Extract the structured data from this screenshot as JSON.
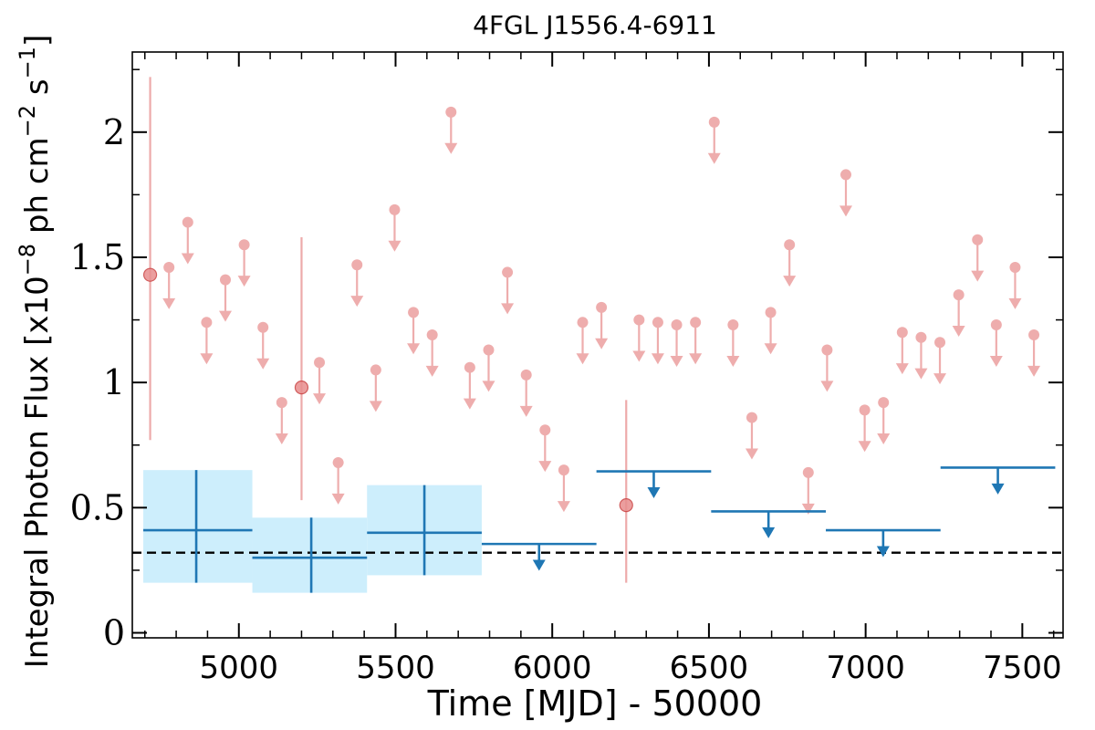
{
  "chart_data": {
    "type": "scatter",
    "title": "4FGL J1556.4-6911",
    "xlabel": "Time [MJD] - 50000",
    "ylabel": "Integral Photon Flux [x10",
    "ylabel_exp1": "−8",
    "ylabel_mid": " ph cm",
    "ylabel_exp2": "−2",
    "ylabel_mid2": " s",
    "ylabel_exp3": "−1",
    "ylabel_end": "]",
    "xlim": [
      4660,
      7630
    ],
    "ylim": [
      -0.02,
      2.32
    ],
    "xticks": [
      5000,
      5500,
      6000,
      6500,
      7000,
      7500
    ],
    "yticks": [
      0,
      0.5,
      1,
      1.5,
      2
    ],
    "ytick_labels": [
      "0",
      "0.5",
      "1",
      "1.5",
      "2"
    ],
    "reference_line": {
      "y": 0.32,
      "style": "dashed",
      "color": "#000000"
    },
    "colors": {
      "monthly": "#e88e8e",
      "yearly": "#1f77b4",
      "yearly_band": "#cdeefc"
    },
    "monthly_detections": [
      {
        "x": 4717,
        "y": 1.43,
        "ylo": 0.77,
        "yhi": 2.22
      },
      {
        "x": 5200,
        "y": 0.98,
        "ylo": 0.53,
        "yhi": 1.58
      },
      {
        "x": 6236,
        "y": 0.51,
        "ylo": 0.2,
        "yhi": 0.93
      }
    ],
    "monthly_upper_limits": [
      {
        "x": 4777,
        "y": 1.46
      },
      {
        "x": 4837,
        "y": 1.64
      },
      {
        "x": 4897,
        "y": 1.24
      },
      {
        "x": 4957,
        "y": 1.41
      },
      {
        "x": 5017,
        "y": 1.55
      },
      {
        "x": 5077,
        "y": 1.22
      },
      {
        "x": 5137,
        "y": 0.92
      },
      {
        "x": 5257,
        "y": 1.08
      },
      {
        "x": 5317,
        "y": 0.68
      },
      {
        "x": 5377,
        "y": 1.47
      },
      {
        "x": 5437,
        "y": 1.05
      },
      {
        "x": 5497,
        "y": 1.69
      },
      {
        "x": 5557,
        "y": 1.28
      },
      {
        "x": 5617,
        "y": 1.19
      },
      {
        "x": 5677,
        "y": 2.08
      },
      {
        "x": 5737,
        "y": 1.06
      },
      {
        "x": 5797,
        "y": 1.13
      },
      {
        "x": 5857,
        "y": 1.44
      },
      {
        "x": 5917,
        "y": 1.03
      },
      {
        "x": 5977,
        "y": 0.81
      },
      {
        "x": 6037,
        "y": 0.65
      },
      {
        "x": 6097,
        "y": 1.24
      },
      {
        "x": 6157,
        "y": 1.3
      },
      {
        "x": 6277,
        "y": 1.25
      },
      {
        "x": 6337,
        "y": 1.24
      },
      {
        "x": 6397,
        "y": 1.23
      },
      {
        "x": 6457,
        "y": 1.24
      },
      {
        "x": 6517,
        "y": 2.04
      },
      {
        "x": 6577,
        "y": 1.23
      },
      {
        "x": 6637,
        "y": 0.86
      },
      {
        "x": 6697,
        "y": 1.28
      },
      {
        "x": 6757,
        "y": 1.55
      },
      {
        "x": 6817,
        "y": 0.64
      },
      {
        "x": 6877,
        "y": 1.13
      },
      {
        "x": 6937,
        "y": 1.83
      },
      {
        "x": 6997,
        "y": 0.89
      },
      {
        "x": 7057,
        "y": 0.92
      },
      {
        "x": 7117,
        "y": 1.2
      },
      {
        "x": 7177,
        "y": 1.18
      },
      {
        "x": 7237,
        "y": 1.16
      },
      {
        "x": 7297,
        "y": 1.35
      },
      {
        "x": 7357,
        "y": 1.57
      },
      {
        "x": 7417,
        "y": 1.23
      },
      {
        "x": 7477,
        "y": 1.46
      },
      {
        "x": 7537,
        "y": 1.19
      }
    ],
    "yearly_detections": [
      {
        "x": 4864,
        "xlo": 4695,
        "xhi": 5043,
        "y": 0.41,
        "ylo": 0.2,
        "yhi": 0.65
      },
      {
        "x": 5231,
        "xlo": 5043,
        "xhi": 5409,
        "y": 0.3,
        "ylo": 0.16,
        "yhi": 0.46
      },
      {
        "x": 5592,
        "xlo": 5409,
        "xhi": 5775,
        "y": 0.4,
        "ylo": 0.23,
        "yhi": 0.59
      }
    ],
    "yearly_upper_limits": [
      {
        "x": 5958,
        "xlo": 5775,
        "xhi": 6141,
        "y": 0.355
      },
      {
        "x": 6324,
        "xlo": 6141,
        "xhi": 6507,
        "y": 0.645
      },
      {
        "x": 6690,
        "xlo": 6507,
        "xhi": 6873,
        "y": 0.485
      },
      {
        "x": 7056,
        "xlo": 6873,
        "xhi": 7239,
        "y": 0.41
      },
      {
        "x": 7422,
        "xlo": 7239,
        "xhi": 7605,
        "y": 0.66
      }
    ]
  }
}
